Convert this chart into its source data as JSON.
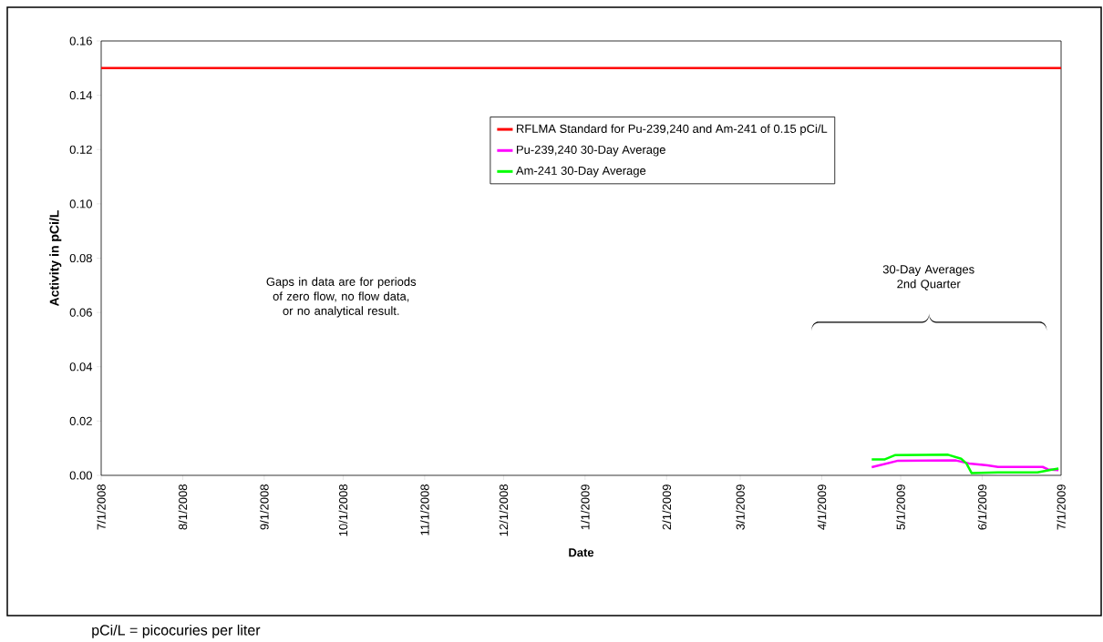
{
  "chart_data": {
    "type": "line",
    "xlabel": "Date",
    "ylabel": "Activity in pCi/L",
    "xlim": [
      "2008-07-01",
      "2009-07-01"
    ],
    "xticks": [
      {
        "value": "2008-07-01",
        "label": "7/1/2008"
      },
      {
        "value": "2008-08-01",
        "label": "8/1/2008"
      },
      {
        "value": "2008-09-01",
        "label": "9/1/2008"
      },
      {
        "value": "2008-10-01",
        "label": "10/1/2008"
      },
      {
        "value": "2008-11-01",
        "label": "11/1/2008"
      },
      {
        "value": "2008-12-01",
        "label": "12/1/2008"
      },
      {
        "value": "2009-01-01",
        "label": "1/1/2009"
      },
      {
        "value": "2009-02-01",
        "label": "2/1/2009"
      },
      {
        "value": "2009-03-01",
        "label": "3/1/2009"
      },
      {
        "value": "2009-04-01",
        "label": "4/1/2009"
      },
      {
        "value": "2009-05-01",
        "label": "5/1/2009"
      },
      {
        "value": "2009-06-01",
        "label": "6/1/2009"
      },
      {
        "value": "2009-07-01",
        "label": "7/1/2009"
      }
    ],
    "ylim": [
      0,
      0.16
    ],
    "yticks": [
      {
        "value": 0,
        "label": "0.00"
      },
      0.02,
      0.04,
      0.06,
      0.08,
      {
        "value": 0.1,
        "label": "0.10"
      },
      0.12,
      0.14,
      0.16
    ],
    "series": [
      {
        "name": "RFLMA Standard for Pu-239,240 and Am-241 of 0.15 pCi/L",
        "color": "#ff0000",
        "x": [
          "2008-07-01",
          "2009-07-01"
        ],
        "values": [
          0.15,
          0.15
        ]
      },
      {
        "name": "Pu-239,240 30-Day Average",
        "color": "#ff00ff",
        "x": [
          "2009-04-20",
          "2009-04-30",
          "2009-05-22",
          "2009-05-27",
          "2009-06-03",
          "2009-06-07",
          "2009-06-24",
          "2009-06-26",
          "2009-06-30"
        ],
        "values": [
          0.003,
          0.0054,
          0.0055,
          0.0044,
          0.0037,
          0.0031,
          0.0031,
          0.0022,
          0.0019
        ]
      },
      {
        "name": "Am-241 30-Day Average",
        "color": "#00ff00",
        "x": [
          "2009-04-20",
          "2009-04-25",
          "2009-04-29",
          "2009-05-19",
          "2009-05-24",
          "2009-05-26",
          "2009-05-28",
          "2009-06-07",
          "2009-06-22",
          "2009-06-27",
          "2009-06-30"
        ],
        "values": [
          0.0059,
          0.0059,
          0.0075,
          0.0076,
          0.0061,
          0.0044,
          0.0008,
          0.0011,
          0.0011,
          0.002,
          0.0025
        ]
      }
    ],
    "legend": "top right",
    "grid": false,
    "marker": "none",
    "line_style": "solid",
    "annotations": [
      "Gaps in data are for periods of zero flow, no flow data, or no analytical result.",
      "30-Day Averages 2nd Quarter",
      "pCi/L = picocuries per liter"
    ]
  }
}
